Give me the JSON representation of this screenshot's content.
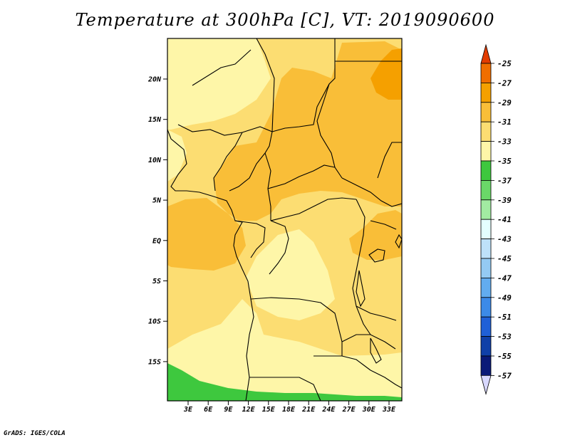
{
  "title": "Temperature at 300hPa [C], VT: 2019090600",
  "credit": "GrADS: IGES/COLA",
  "map": {
    "lat_labels": [
      "20N",
      "15N",
      "10N",
      "5N",
      "EQ",
      "5S",
      "10S",
      "15S"
    ],
    "lon_labels": [
      "3E",
      "6E",
      "9E",
      "12E",
      "15E",
      "18E",
      "21E",
      "24E",
      "27E",
      "30E",
      "33E"
    ]
  },
  "legend": {
    "labels": [
      "-25",
      "-27",
      "-29",
      "-31",
      "-33",
      "-35",
      "-37",
      "-39",
      "-41",
      "-43",
      "-45",
      "-47",
      "-49",
      "-51",
      "-53",
      "-55",
      "-57"
    ],
    "colors": [
      "#e23c00",
      "#f06e00",
      "#f5a000",
      "#f9be38",
      "#fcdd72",
      "#fef6a8",
      "#3ec83e",
      "#6ad868",
      "#a2eba2",
      "#e4ffff",
      "#bee1f9",
      "#94caf3",
      "#62acef",
      "#3c8ae8",
      "#2060d7",
      "#1040a8",
      "#0a1a78"
    ],
    "top_triangle_color": "#e23c00",
    "bottom_triangle_color": "#d8d8ff"
  },
  "colors": {
    "c1": "#fef6a8",
    "c2": "#fcdd72",
    "c3": "#f9be38",
    "c4": "#f5a000",
    "green": "#3ec83e"
  }
}
